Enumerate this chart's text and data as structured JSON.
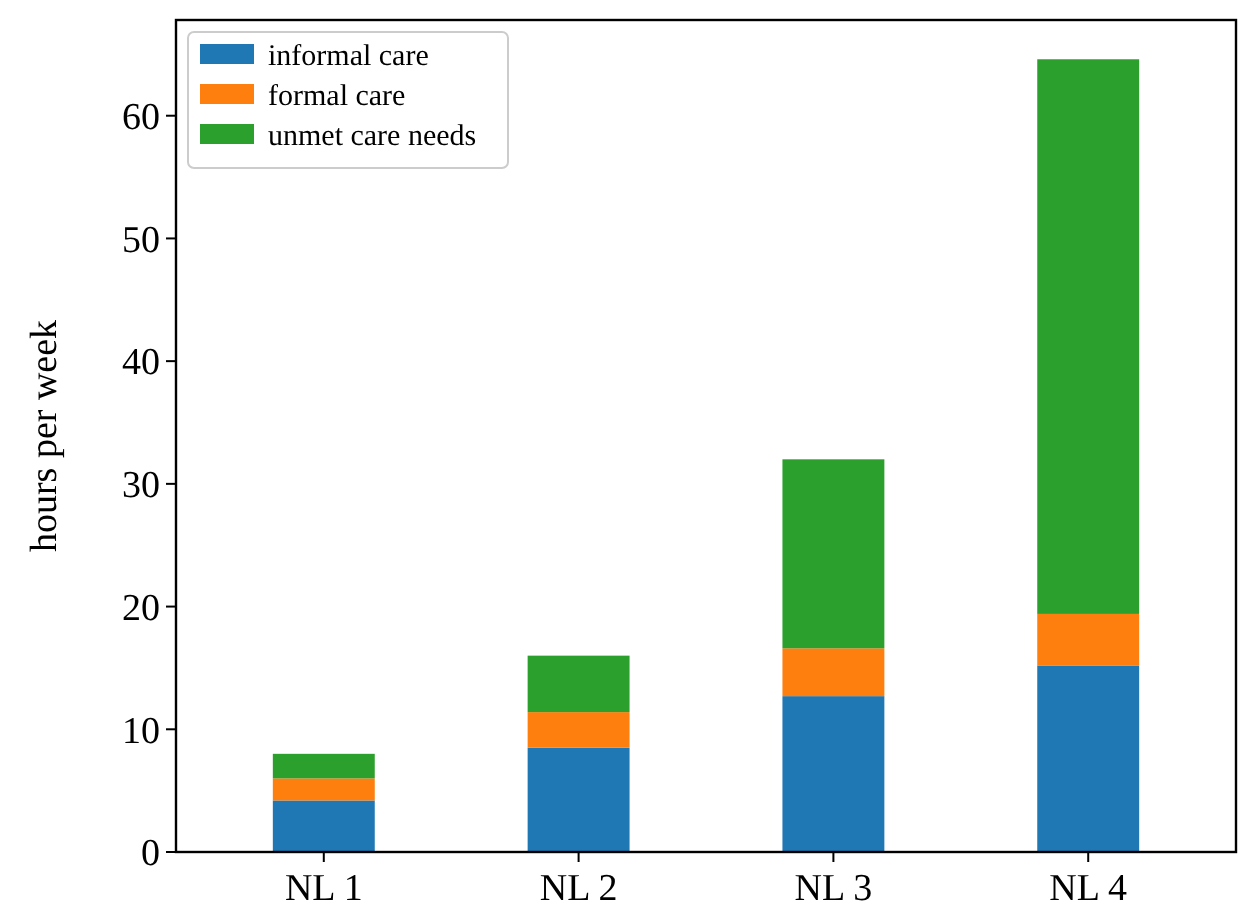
{
  "chart_data": {
    "type": "bar",
    "stacked": true,
    "ylabel": "hours per week",
    "categories": [
      "NL 1",
      "NL 2",
      "NL 3",
      "NL 4"
    ],
    "series": [
      {
        "name": "informal care",
        "color": "#1f77b4",
        "values": [
          4.2,
          8.5,
          12.7,
          15.2
        ]
      },
      {
        "name": "formal care",
        "color": "#ff7f0e",
        "values": [
          1.8,
          2.9,
          3.9,
          4.2
        ]
      },
      {
        "name": "unmet care needs",
        "color": "#2ca02c",
        "values": [
          2.0,
          4.6,
          15.4,
          45.2
        ]
      }
    ],
    "ylim": [
      0,
      67.8
    ],
    "yticks": [
      0,
      10,
      20,
      30,
      40,
      50,
      60
    ],
    "grid": false,
    "legend": "top left"
  }
}
